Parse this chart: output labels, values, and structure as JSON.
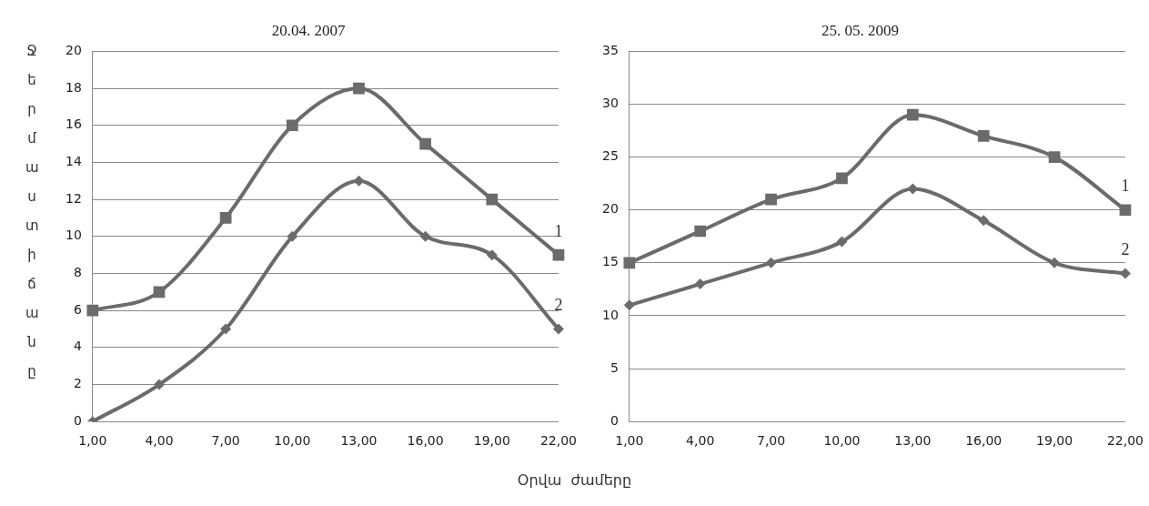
{
  "chart_data": [
    {
      "type": "line",
      "title": "20.04. 2007",
      "ylabel": "Ջերմաստիճանը",
      "xlabel": "Օրվա  ժամերը",
      "categories": [
        "1,00",
        "4,00",
        "7,00",
        "10,00",
        "13,00",
        "16,00",
        "19,00",
        "22,00"
      ],
      "series": [
        {
          "name": "1",
          "color": "#6b6b6b",
          "marker": "square",
          "values": [
            6,
            7,
            11,
            16,
            18,
            15,
            12,
            9
          ]
        },
        {
          "name": "2",
          "color": "#6b6b6b",
          "marker": "diamond",
          "values": [
            0,
            2,
            5,
            10,
            13,
            10,
            9,
            5
          ]
        }
      ],
      "ylim": [
        0,
        20
      ],
      "yticks": [
        0,
        2,
        4,
        6,
        8,
        10,
        12,
        14,
        16,
        18,
        20
      ],
      "grid": "y",
      "legend": false
    },
    {
      "type": "line",
      "title": "25. 05. 2009",
      "categories": [
        "1,00",
        "4,00",
        "7,00",
        "10,00",
        "13,00",
        "16,00",
        "19,00",
        "22,00"
      ],
      "series": [
        {
          "name": "1",
          "color": "#6b6b6b",
          "marker": "square",
          "values": [
            15,
            18,
            21,
            23,
            29,
            27,
            25,
            20
          ]
        },
        {
          "name": "2",
          "color": "#6b6b6b",
          "marker": "diamond",
          "values": [
            11,
            13,
            15,
            17,
            22,
            19,
            15,
            14
          ]
        }
      ],
      "ylim": [
        0,
        35
      ],
      "yticks": [
        0,
        5,
        10,
        15,
        20,
        25,
        30,
        35
      ],
      "grid": "y",
      "legend": false
    }
  ]
}
